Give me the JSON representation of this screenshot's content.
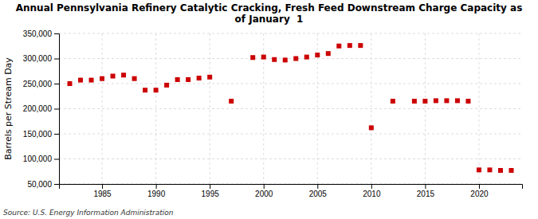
{
  "chart_data": {
    "type": "scatter",
    "title": "Annual Pennsylvania Refinery Catalytic Cracking, Fresh Feed Downstream Charge Capacity as\nof January  1",
    "y_label": "Barrels per Stream Day",
    "annotations": [
      "Source: U.S. Energy Information Administration"
    ],
    "x": [
      1982,
      1983,
      1984,
      1985,
      1986,
      1987,
      1988,
      1989,
      1990,
      1991,
      1992,
      1993,
      1994,
      1995,
      1997,
      1999,
      2000,
      2001,
      2002,
      2003,
      2004,
      2005,
      2006,
      2007,
      2008,
      2009,
      2010,
      2012,
      2014,
      2015,
      2016,
      2017,
      2018,
      2019,
      2020,
      2021,
      2022,
      2023
    ],
    "values": [
      250000,
      257000,
      257000,
      260000,
      265000,
      267000,
      260000,
      237000,
      237000,
      247000,
      258000,
      258000,
      261000,
      263000,
      215000,
      302000,
      303000,
      298000,
      297000,
      300000,
      303000,
      307000,
      310000,
      325000,
      326000,
      326000,
      162000,
      215000,
      215000,
      215000,
      216000,
      216000,
      216000,
      215000,
      78000,
      78000,
      77000,
      77000
    ],
    "color": "#cc0000",
    "marker": "square",
    "xlim": [
      1981,
      2024
    ],
    "xticks": [
      1985,
      1990,
      1995,
      2000,
      2005,
      2010,
      2015,
      2020
    ],
    "ylim": [
      50000,
      350000
    ],
    "yticks": [
      {
        "value": 50000,
        "label": "50,000"
      },
      {
        "value": 100000,
        "label": "100,000"
      },
      {
        "value": 150000,
        "label": "150,000"
      },
      {
        "value": 200000,
        "label": "200,000"
      },
      {
        "value": 250000,
        "label": "250,000"
      },
      {
        "value": 300000,
        "label": "300,000"
      },
      {
        "value": 350000,
        "label": "350,000"
      }
    ],
    "grid": true
  }
}
